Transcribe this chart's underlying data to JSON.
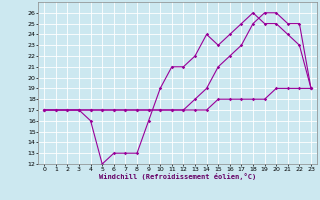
{
  "title": "",
  "xlabel": "Windchill (Refroidissement éolien,°C)",
  "ylabel": "",
  "background_color": "#cce8f0",
  "grid_color": "#ffffff",
  "line_color": "#990099",
  "xlim": [
    -0.5,
    23.5
  ],
  "ylim": [
    12,
    27
  ],
  "xticks": [
    0,
    1,
    2,
    3,
    4,
    5,
    6,
    7,
    8,
    9,
    10,
    11,
    12,
    13,
    14,
    15,
    16,
    17,
    18,
    19,
    20,
    21,
    22,
    23
  ],
  "yticks": [
    12,
    13,
    14,
    15,
    16,
    17,
    18,
    19,
    20,
    21,
    22,
    23,
    24,
    25,
    26
  ],
  "series1_x": [
    0,
    1,
    2,
    3,
    4,
    5,
    6,
    7,
    8,
    9,
    10,
    11,
    12,
    13,
    14,
    15,
    16,
    17,
    18,
    19,
    20,
    21,
    22,
    23
  ],
  "series1_y": [
    17,
    17,
    17,
    17,
    17,
    17,
    17,
    17,
    17,
    17,
    17,
    17,
    17,
    17,
    17,
    18,
    18,
    18,
    18,
    18,
    19,
    19,
    19,
    19
  ],
  "series2_x": [
    0,
    1,
    2,
    3,
    4,
    5,
    6,
    7,
    8,
    9,
    10,
    11,
    12,
    13,
    14,
    15,
    16,
    17,
    18,
    19,
    20,
    21,
    22,
    23
  ],
  "series2_y": [
    17,
    17,
    17,
    17,
    17,
    17,
    17,
    17,
    17,
    17,
    17,
    17,
    17,
    18,
    19,
    21,
    22,
    23,
    25,
    26,
    26,
    25,
    25,
    19
  ],
  "series3_x": [
    0,
    3,
    4,
    5,
    6,
    7,
    8,
    9,
    10,
    11,
    12,
    13,
    14,
    15,
    16,
    17,
    18,
    19,
    20,
    21,
    22,
    23
  ],
  "series3_y": [
    17,
    17,
    16,
    12,
    13,
    13,
    13,
    16,
    19,
    21,
    21,
    22,
    24,
    23,
    24,
    25,
    26,
    25,
    25,
    24,
    23,
    19
  ]
}
